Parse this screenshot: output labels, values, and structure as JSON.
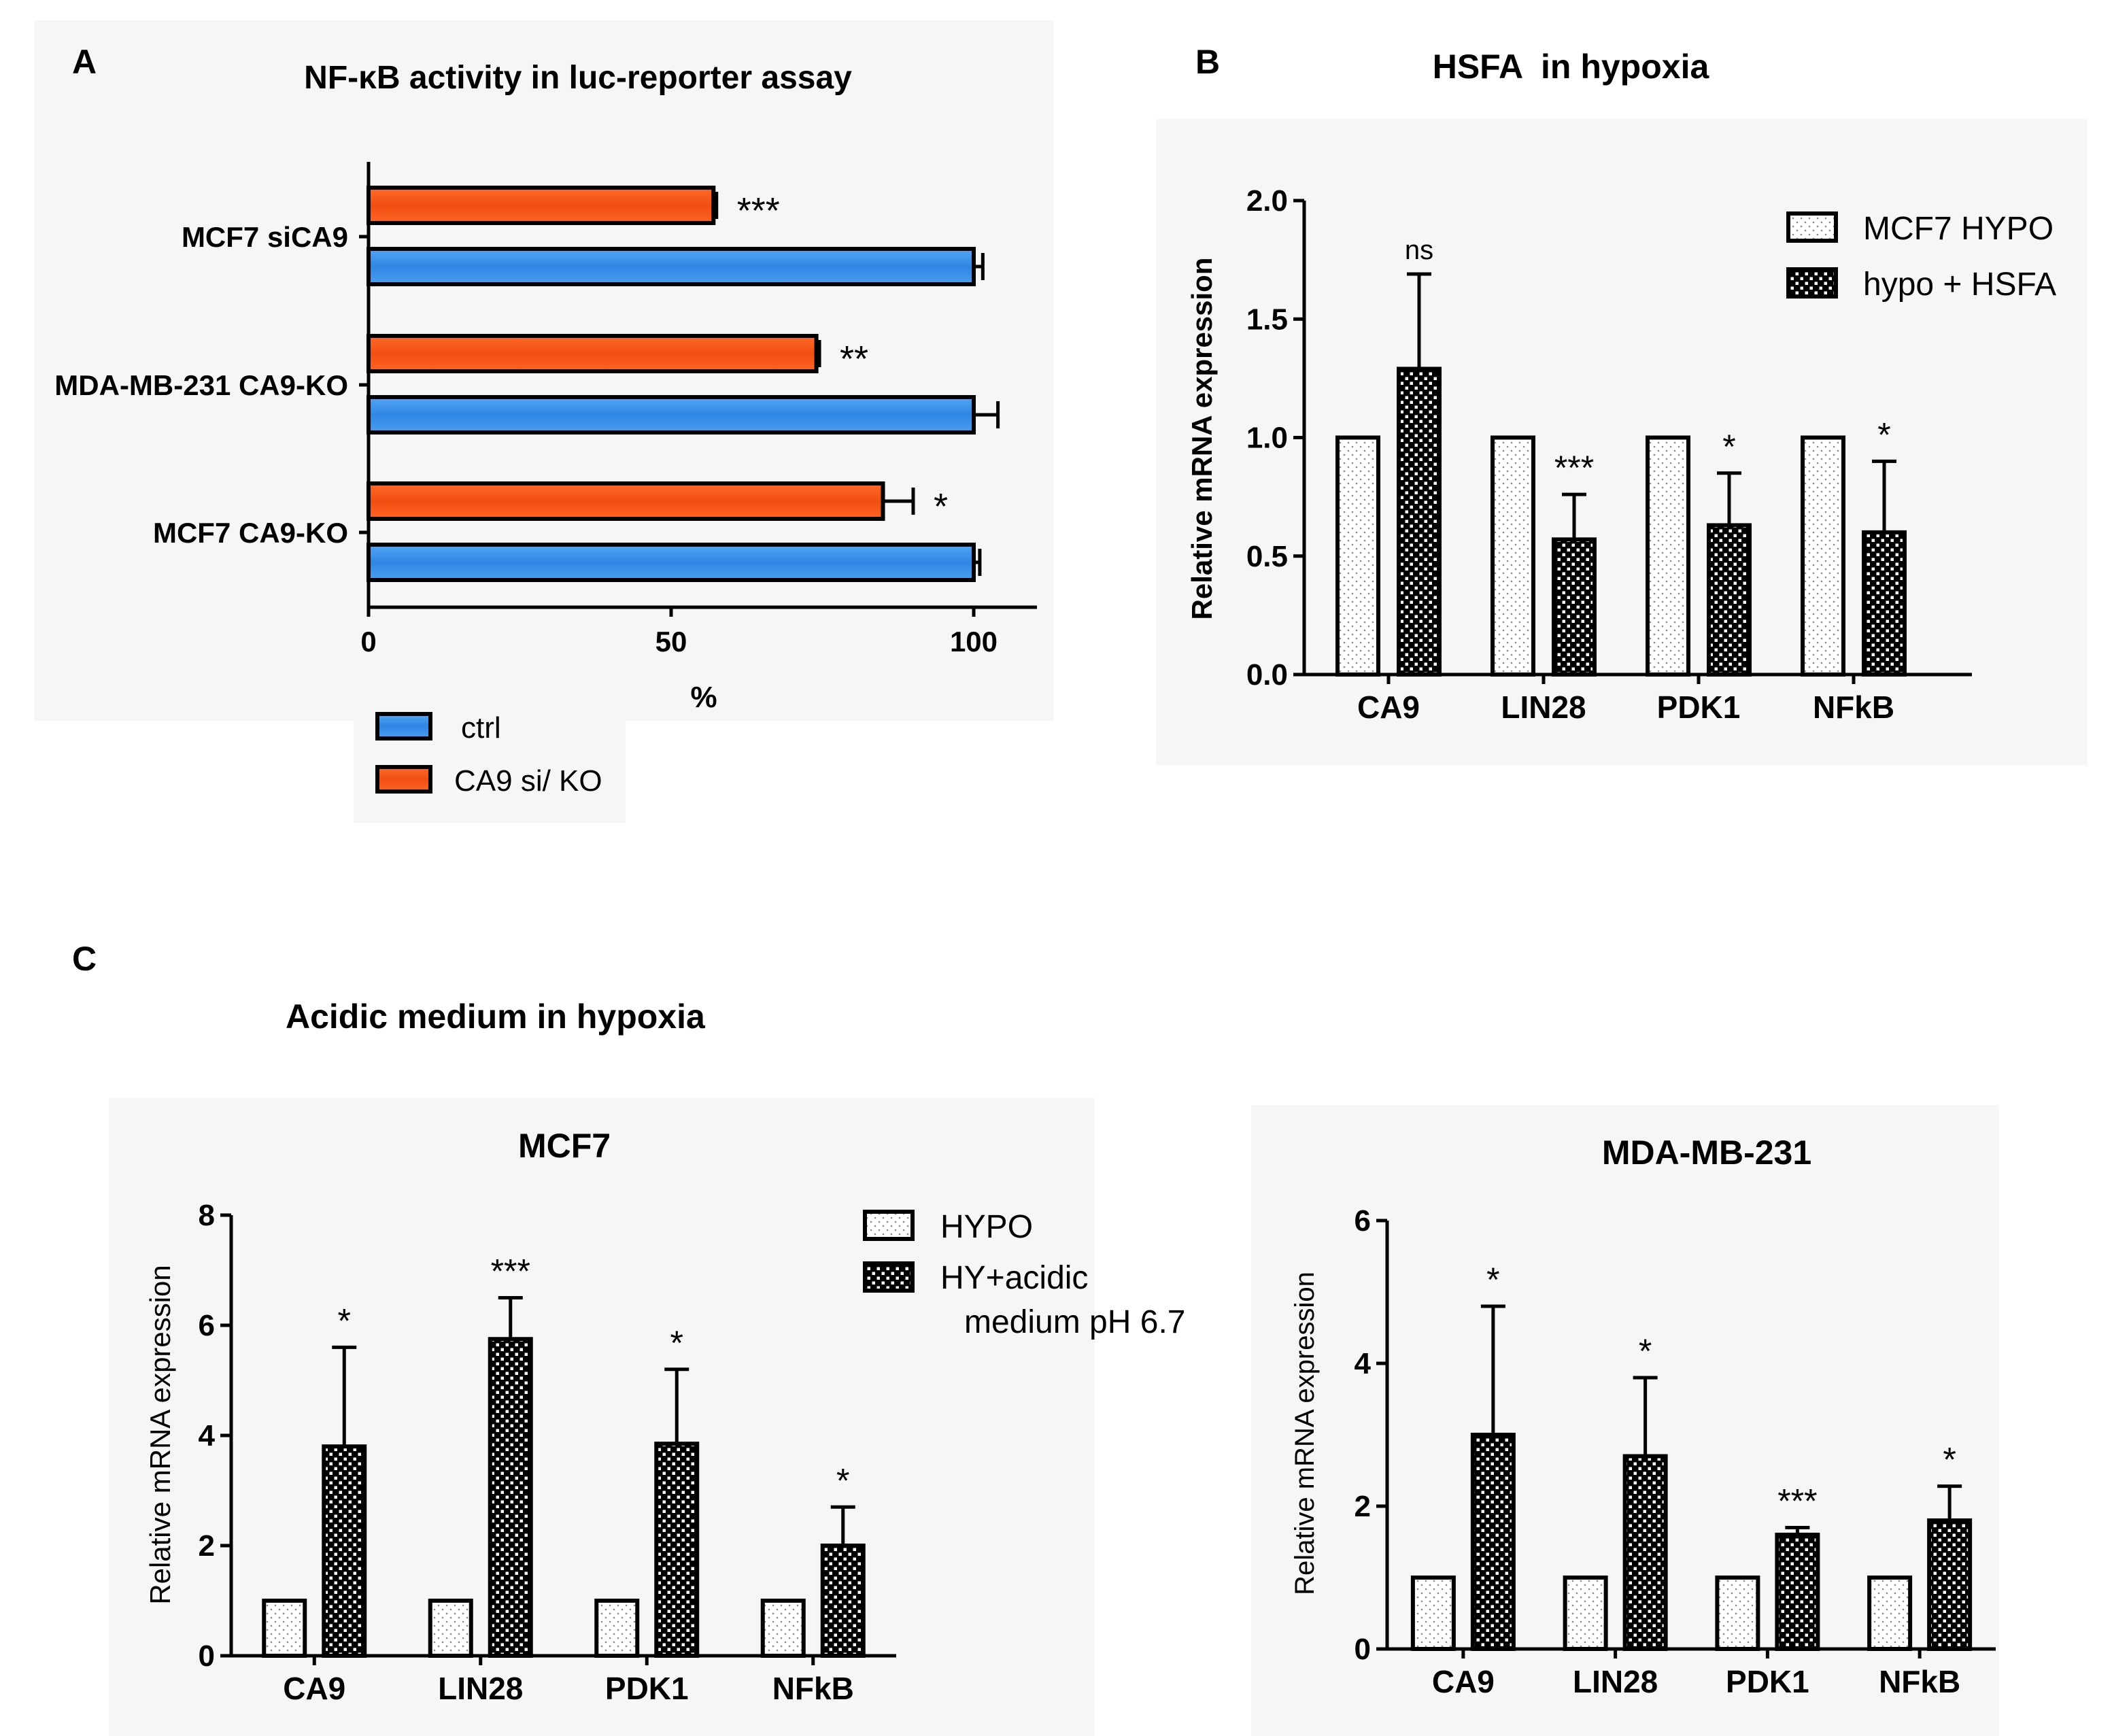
{
  "figure_labels": {
    "A": "A",
    "B": "B",
    "C": "C"
  },
  "section_c_title": "Acidic medium in hypoxia",
  "colors": {
    "ctrl": "#3d8fe6",
    "ko": "#f2561d",
    "axis": "#000000",
    "panel_bg": "#f6f6f6"
  },
  "chart_data": [
    {
      "id": "A",
      "type": "bar",
      "orientation": "horizontal",
      "title": "NF-κB activity in luc-reporter assay",
      "xlabel": "%",
      "ylabel": "",
      "xlim": [
        0,
        110
      ],
      "xticks": [
        "0",
        "50",
        "100"
      ],
      "categories": [
        "MCF7 siCA9",
        "MDA-MB-231 CA9-KO",
        "MCF7 CA9-KO"
      ],
      "series": [
        {
          "name": "CA9 si/ KO",
          "values": [
            57,
            74,
            85
          ],
          "errors": [
            0.5,
            0.5,
            5
          ]
        },
        {
          "name": "ctrl",
          "values": [
            100,
            100,
            100
          ],
          "errors": [
            1.5,
            4,
            1
          ]
        }
      ],
      "significance": [
        "***",
        "**",
        "*"
      ],
      "legend": [
        "ctrl",
        "CA9 si/ KO"
      ]
    },
    {
      "id": "B",
      "type": "bar",
      "title": "HSFA  in hypoxia",
      "xlabel": "",
      "ylabel": "Relative mRNA expression",
      "ylim": [
        0,
        2.0
      ],
      "yticks": [
        "0.0",
        "0.5",
        "1.0",
        "1.5",
        "2.0"
      ],
      "categories": [
        "CA9",
        "LIN28",
        "PDK1",
        "NFkB"
      ],
      "series": [
        {
          "name": "MCF7 HYPO",
          "values": [
            1.0,
            1.0,
            1.0,
            1.0
          ],
          "errors": [
            0,
            0,
            0,
            0
          ]
        },
        {
          "name": "hypo + HSFA",
          "values": [
            1.29,
            0.57,
            0.63,
            0.6
          ],
          "errors": [
            0.4,
            0.19,
            0.22,
            0.3
          ]
        }
      ],
      "significance": [
        "ns",
        "***",
        "*",
        "*"
      ],
      "legend": [
        "MCF7 HYPO",
        "hypo + HSFA"
      ]
    },
    {
      "id": "C1",
      "type": "bar",
      "title": "MCF7",
      "xlabel": "",
      "ylabel": "Relative mRNA expression",
      "ylim": [
        0,
        8
      ],
      "yticks": [
        "0",
        "2",
        "4",
        "6",
        "8"
      ],
      "categories": [
        "CA9",
        "LIN28",
        "PDK1",
        "NFkB"
      ],
      "series": [
        {
          "name": "HYPO",
          "values": [
            1,
            1,
            1,
            1
          ],
          "errors": [
            0,
            0,
            0,
            0
          ]
        },
        {
          "name": "HY+acidic medium pH 6.7",
          "values": [
            3.8,
            5.75,
            3.85,
            2.0
          ],
          "errors": [
            1.8,
            0.75,
            1.35,
            0.7
          ]
        }
      ],
      "significance": [
        "*",
        "***",
        "*",
        "*"
      ],
      "legend": [
        "HYPO",
        "HY+acidic",
        "medium pH 6.7"
      ]
    },
    {
      "id": "C2",
      "type": "bar",
      "title": "MDA-MB-231",
      "xlabel": "",
      "ylabel": "Relative mRNA expression",
      "ylim": [
        0,
        6
      ],
      "yticks": [
        "0",
        "2",
        "4",
        "6"
      ],
      "categories": [
        "CA9",
        "LIN28",
        "PDK1",
        "NFkB"
      ],
      "series": [
        {
          "name": "HYPO",
          "values": [
            1,
            1,
            1,
            1
          ],
          "errors": [
            0,
            0,
            0,
            0
          ]
        },
        {
          "name": "HY+acidic medium pH 6.7",
          "values": [
            3.0,
            2.7,
            1.6,
            1.8
          ],
          "errors": [
            1.8,
            1.1,
            0.1,
            0.48
          ]
        }
      ],
      "significance": [
        "*",
        "*",
        "***",
        "*"
      ]
    }
  ]
}
